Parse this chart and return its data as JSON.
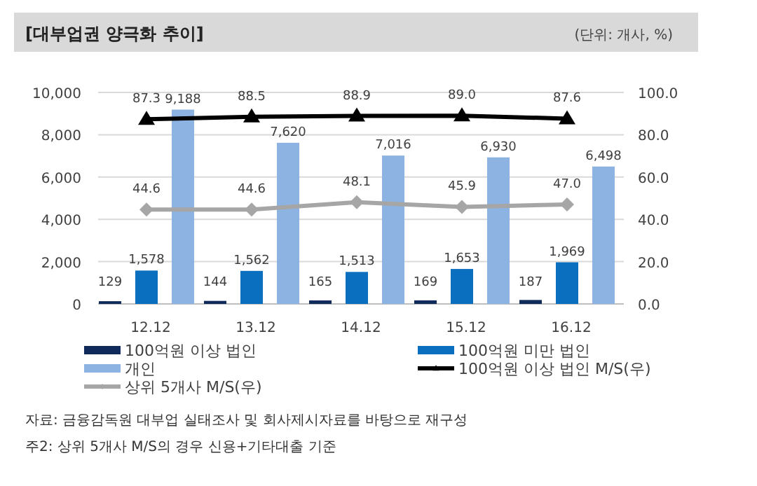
{
  "chart_data": {
    "type": "bar",
    "title": "[대부업권 양극화 추이]",
    "subtitle": "(단위: 개사, %)",
    "categories": [
      "12.12",
      "13.12",
      "14.12",
      "15.12",
      "16.12"
    ],
    "series": [
      {
        "name": "100억원 이상 법인",
        "color": "#102a5c",
        "values": [
          129,
          144,
          165,
          169,
          187
        ]
      },
      {
        "name": "100억원 미만 법인",
        "color": "#0b6fc0",
        "values": [
          1578,
          1562,
          1513,
          1653,
          1969
        ],
        "value_labels": [
          "1,578",
          "1,562",
          "1,513",
          "1,653",
          "1,969"
        ]
      },
      {
        "name": "개인",
        "color": "#8db3e2",
        "values": [
          9188,
          7620,
          7016,
          6930,
          6498
        ],
        "value_labels": [
          "9,188",
          "7,620",
          "7,016",
          "6,930",
          "6,498"
        ]
      },
      {
        "name": "100억원 이상 법인 M/S(우)",
        "type": "line",
        "axis": "y2",
        "marker": "triangle",
        "color": "#000000",
        "values": [
          87.3,
          88.5,
          88.9,
          89.0,
          87.6
        ],
        "value_labels": [
          "87.3",
          "88.5",
          "88.9",
          "89.0",
          "87.6"
        ]
      },
      {
        "name": "상위 5개사 M/S(우)",
        "type": "line",
        "axis": "y2",
        "marker": "diamond",
        "color": "#a6a6a6",
        "values": [
          44.6,
          44.6,
          48.1,
          45.9,
          47.0
        ],
        "value_labels": [
          "44.6",
          "44.6",
          "48.1",
          "45.9",
          "47.0"
        ]
      }
    ],
    "ylim": [
      0,
      10000
    ],
    "yticks": [
      {
        "value": 0,
        "label": "0"
      },
      {
        "value": 2000,
        "label": "2,000"
      },
      {
        "value": 4000,
        "label": "4,000"
      },
      {
        "value": 6000,
        "label": "6,000"
      },
      {
        "value": 8000,
        "label": "8,000"
      },
      {
        "value": 10000,
        "label": "10,000"
      }
    ],
    "y2lim": [
      0,
      100
    ],
    "y2ticks": [
      {
        "value": 0,
        "label": "0.0"
      },
      {
        "value": 20,
        "label": "20.0"
      },
      {
        "value": 40,
        "label": "40.0"
      },
      {
        "value": 60,
        "label": "60.0"
      },
      {
        "value": 80,
        "label": "80.0"
      },
      {
        "value": 100,
        "label": "100.0"
      }
    ],
    "grid": "y",
    "legend": "bottom",
    "data_labels": true,
    "annotations": [
      "자료: 금융감독원 대부업 실태조사 및 회사제시자료를 바탕으로 재구성",
      "주2: 상위 5개사 M/S의 경우 신용+기타대출 기준"
    ]
  }
}
